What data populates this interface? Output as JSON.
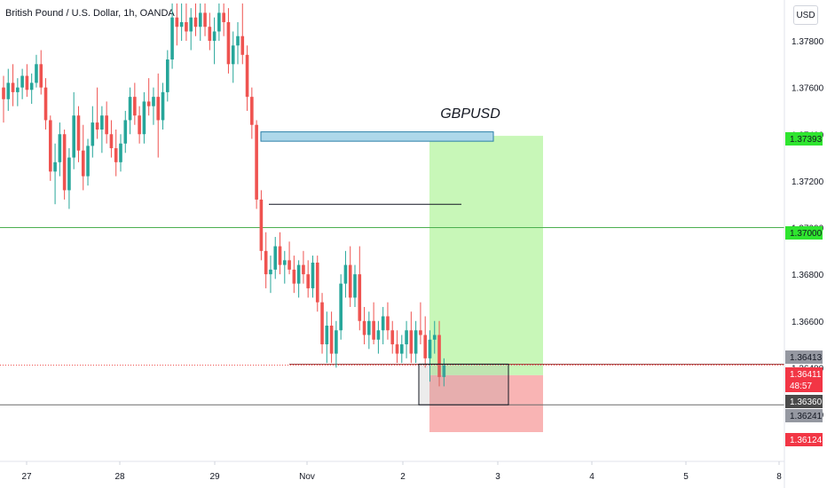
{
  "header": {
    "title": "British Pound / U.S. Dollar, 1h, OANDA",
    "currency_button": "USD"
  },
  "annotation": {
    "label": "GBPUSD"
  },
  "colors": {
    "up_candle": "#26a69a",
    "down_candle": "#ef5350",
    "profit_zone": "#c8f7b8",
    "loss_zone": "#f9b4b4",
    "zone_line_blue": "#aed8ea",
    "hline_green": "#4caf50",
    "tag_green": "#2fe52f",
    "tag_red": "#f23645",
    "tag_gray": "#9598a1",
    "tag_dark": "#4a4a4a"
  },
  "chart_data": {
    "type": "candlestick",
    "title": "British Pound / U.S. Dollar, 1h, OANDA",
    "ylim": [
      1.3595,
      1.3796
    ],
    "y_ticks": [
      "1.37800",
      "1.37600",
      "1.37400",
      "1.37200",
      "1.37000",
      "1.36800",
      "1.36600",
      "1.36400",
      "1.36200"
    ],
    "x_ticks": [
      "27",
      "28",
      "29",
      "Nov",
      "2",
      "3",
      "4",
      "5",
      "8"
    ],
    "price_tags": [
      {
        "text": "1.37393",
        "value": 1.37393,
        "style": "green"
      },
      {
        "text": "1.37000",
        "value": 1.37,
        "style": "green"
      },
      {
        "text": "1.36413",
        "value": 1.36413,
        "style": "gray"
      },
      {
        "text": "1.36411",
        "value": 1.36411,
        "style": "red",
        "sub": "48:57"
      },
      {
        "text": "1.36360",
        "value": 1.3636,
        "style": "dark"
      },
      {
        "text": "1.36241",
        "value": 1.36241,
        "style": "gray"
      },
      {
        "text": "1.36124",
        "value": 1.36124,
        "style": "red"
      }
    ],
    "levels": {
      "horizontal_green": 1.37,
      "horizontal_black": 1.36241,
      "current_price": 1.36411,
      "mid_black_segment": 1.371,
      "blue_zone": [
        1.3737,
        1.3741
      ],
      "position_entry": 1.3636,
      "position_target": 1.37393,
      "position_stop": 1.36124,
      "entry_box": [
        1.36241,
        1.364
      ]
    },
    "candles": [
      [
        1.376,
        1.3765,
        1.3745,
        1.3755
      ],
      [
        1.3755,
        1.3768,
        1.375,
        1.3762
      ],
      [
        1.3762,
        1.377,
        1.3752,
        1.3758
      ],
      [
        1.3758,
        1.3764,
        1.3752,
        1.376
      ],
      [
        1.376,
        1.3768,
        1.3755,
        1.3765
      ],
      [
        1.3765,
        1.377,
        1.3756,
        1.3759
      ],
      [
        1.3759,
        1.3766,
        1.3753,
        1.3762
      ],
      [
        1.3762,
        1.3774,
        1.376,
        1.377
      ],
      [
        1.377,
        1.3776,
        1.3757,
        1.376
      ],
      [
        1.376,
        1.3764,
        1.3742,
        1.3746
      ],
      [
        1.3746,
        1.3748,
        1.372,
        1.3724
      ],
      [
        1.3724,
        1.3736,
        1.371,
        1.3728
      ],
      [
        1.3728,
        1.3745,
        1.3722,
        1.374
      ],
      [
        1.374,
        1.3742,
        1.3712,
        1.3716
      ],
      [
        1.3716,
        1.3734,
        1.3708,
        1.373
      ],
      [
        1.373,
        1.3758,
        1.3725,
        1.3748
      ],
      [
        1.3748,
        1.3752,
        1.3728,
        1.3733
      ],
      [
        1.3733,
        1.3744,
        1.3716,
        1.3722
      ],
      [
        1.3722,
        1.3738,
        1.3718,
        1.3735
      ],
      [
        1.3735,
        1.3752,
        1.373,
        1.3745
      ],
      [
        1.3745,
        1.376,
        1.3738,
        1.3742
      ],
      [
        1.3742,
        1.3752,
        1.3732,
        1.3748
      ],
      [
        1.3748,
        1.3754,
        1.3736,
        1.374
      ],
      [
        1.374,
        1.3746,
        1.373,
        1.3734
      ],
      [
        1.3734,
        1.3742,
        1.3722,
        1.3728
      ],
      [
        1.3728,
        1.374,
        1.3724,
        1.3736
      ],
      [
        1.3736,
        1.375,
        1.3732,
        1.3746
      ],
      [
        1.3746,
        1.376,
        1.374,
        1.3756
      ],
      [
        1.3756,
        1.3762,
        1.3744,
        1.3748
      ],
      [
        1.3748,
        1.3752,
        1.3736,
        1.374
      ],
      [
        1.374,
        1.3758,
        1.3736,
        1.3754
      ],
      [
        1.3754,
        1.3764,
        1.3748,
        1.3752
      ],
      [
        1.3752,
        1.376,
        1.3744,
        1.3756
      ],
      [
        1.3756,
        1.3766,
        1.373,
        1.3746
      ],
      [
        1.3746,
        1.3762,
        1.3742,
        1.3758
      ],
      [
        1.3758,
        1.3776,
        1.3754,
        1.3772
      ],
      [
        1.3772,
        1.3796,
        1.3768,
        1.379
      ],
      [
        1.379,
        1.3796,
        1.3778,
        1.3786
      ],
      [
        1.3786,
        1.3796,
        1.378,
        1.3788
      ],
      [
        1.3788,
        1.3796,
        1.378,
        1.3784
      ],
      [
        1.3784,
        1.3794,
        1.3776,
        1.379
      ],
      [
        1.379,
        1.3796,
        1.3782,
        1.3786
      ],
      [
        1.3786,
        1.3796,
        1.378,
        1.3792
      ],
      [
        1.3792,
        1.3796,
        1.3782,
        1.3786
      ],
      [
        1.3786,
        1.3792,
        1.3776,
        1.378
      ],
      [
        1.378,
        1.379,
        1.377,
        1.3784
      ],
      [
        1.3784,
        1.3796,
        1.378,
        1.3792
      ],
      [
        1.3792,
        1.3796,
        1.3782,
        1.3788
      ],
      [
        1.3788,
        1.3794,
        1.3766,
        1.377
      ],
      [
        1.377,
        1.3784,
        1.3762,
        1.3778
      ],
      [
        1.3778,
        1.3788,
        1.377,
        1.3782
      ],
      [
        1.3782,
        1.3796,
        1.377,
        1.3774
      ],
      [
        1.3774,
        1.3778,
        1.375,
        1.3756
      ],
      [
        1.3756,
        1.376,
        1.3738,
        1.3744
      ],
      [
        1.3744,
        1.3746,
        1.3708,
        1.3712
      ],
      [
        1.3712,
        1.3716,
        1.3686,
        1.369
      ],
      [
        1.369,
        1.3698,
        1.3674,
        1.368
      ],
      [
        1.368,
        1.3688,
        1.3672,
        1.3682
      ],
      [
        1.3682,
        1.3696,
        1.3678,
        1.3692
      ],
      [
        1.3692,
        1.3698,
        1.368,
        1.3684
      ],
      [
        1.3684,
        1.369,
        1.3676,
        1.3686
      ],
      [
        1.3686,
        1.3694,
        1.368,
        1.3682
      ],
      [
        1.3682,
        1.3688,
        1.3672,
        1.3676
      ],
      [
        1.3676,
        1.3686,
        1.367,
        1.3684
      ],
      [
        1.3684,
        1.369,
        1.3676,
        1.368
      ],
      [
        1.368,
        1.3686,
        1.367,
        1.3674
      ],
      [
        1.3674,
        1.3688,
        1.367,
        1.3685
      ],
      [
        1.3685,
        1.3688,
        1.3664,
        1.3668
      ],
      [
        1.3668,
        1.3672,
        1.3646,
        1.365
      ],
      [
        1.365,
        1.3664,
        1.3642,
        1.3658
      ],
      [
        1.3658,
        1.3664,
        1.3642,
        1.3646
      ],
      [
        1.3646,
        1.366,
        1.364,
        1.3656
      ],
      [
        1.3656,
        1.368,
        1.3652,
        1.3676
      ],
      [
        1.3676,
        1.369,
        1.367,
        1.3684
      ],
      [
        1.3684,
        1.3692,
        1.3666,
        1.367
      ],
      [
        1.367,
        1.3684,
        1.3666,
        1.368
      ],
      [
        1.368,
        1.3692,
        1.3656,
        1.366
      ],
      [
        1.366,
        1.3666,
        1.365,
        1.3654
      ],
      [
        1.3654,
        1.3664,
        1.3648,
        1.366
      ],
      [
        1.366,
        1.3668,
        1.365,
        1.3652
      ],
      [
        1.3652,
        1.366,
        1.3646,
        1.3656
      ],
      [
        1.3656,
        1.3666,
        1.365,
        1.3662
      ],
      [
        1.3662,
        1.3668,
        1.3652,
        1.3656
      ],
      [
        1.3656,
        1.366,
        1.3646,
        1.365
      ],
      [
        1.365,
        1.3656,
        1.3642,
        1.3646
      ],
      [
        1.3646,
        1.3654,
        1.3642,
        1.365
      ],
      [
        1.365,
        1.366,
        1.3644,
        1.3656
      ],
      [
        1.3656,
        1.3664,
        1.3642,
        1.3646
      ],
      [
        1.3646,
        1.366,
        1.3642,
        1.3656
      ],
      [
        1.3656,
        1.3668,
        1.365,
        1.3654
      ],
      [
        1.3654,
        1.3662,
        1.364,
        1.3644
      ],
      [
        1.3644,
        1.3656,
        1.3634,
        1.3652
      ],
      [
        1.3652,
        1.366,
        1.3646,
        1.3654
      ],
      [
        1.3654,
        1.366,
        1.3632,
        1.3636
      ],
      [
        1.3636,
        1.3644,
        1.3632,
        1.3641
      ]
    ]
  }
}
